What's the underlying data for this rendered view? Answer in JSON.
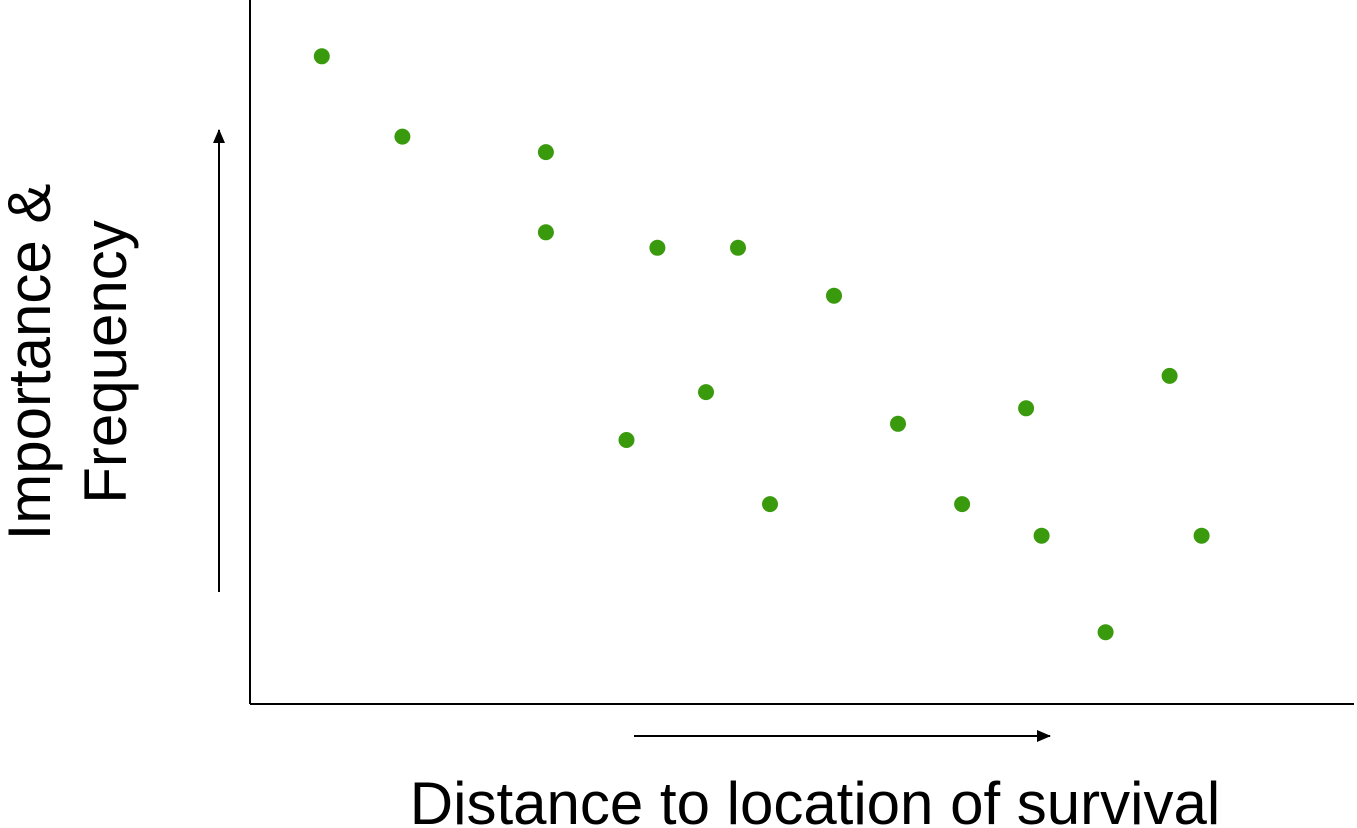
{
  "chart_data": {
    "type": "scatter",
    "xlabel": "Distance to location of survival",
    "ylabel_lines": [
      "Importance &",
      "Frequency"
    ],
    "xlim": [
      0,
      100
    ],
    "ylim": [
      0,
      100
    ],
    "ticks": "none",
    "grid": false,
    "legend": "none",
    "point_color": "#3a9a0e",
    "series": [
      {
        "points": [
          {
            "x": 6.5,
            "y": 92.0
          },
          {
            "x": 13.8,
            "y": 80.6
          },
          {
            "x": 26.8,
            "y": 78.4
          },
          {
            "x": 26.8,
            "y": 67.0
          },
          {
            "x": 36.9,
            "y": 64.8
          },
          {
            "x": 44.2,
            "y": 64.8
          },
          {
            "x": 52.9,
            "y": 58.0
          },
          {
            "x": 34.1,
            "y": 37.5
          },
          {
            "x": 41.3,
            "y": 44.3
          },
          {
            "x": 47.1,
            "y": 28.4
          },
          {
            "x": 58.7,
            "y": 39.8
          },
          {
            "x": 64.5,
            "y": 28.4
          },
          {
            "x": 70.3,
            "y": 42.0
          },
          {
            "x": 71.7,
            "y": 23.9
          },
          {
            "x": 77.5,
            "y": 10.2
          },
          {
            "x": 83.3,
            "y": 46.6
          },
          {
            "x": 86.2,
            "y": 23.9
          }
        ]
      }
    ]
  }
}
